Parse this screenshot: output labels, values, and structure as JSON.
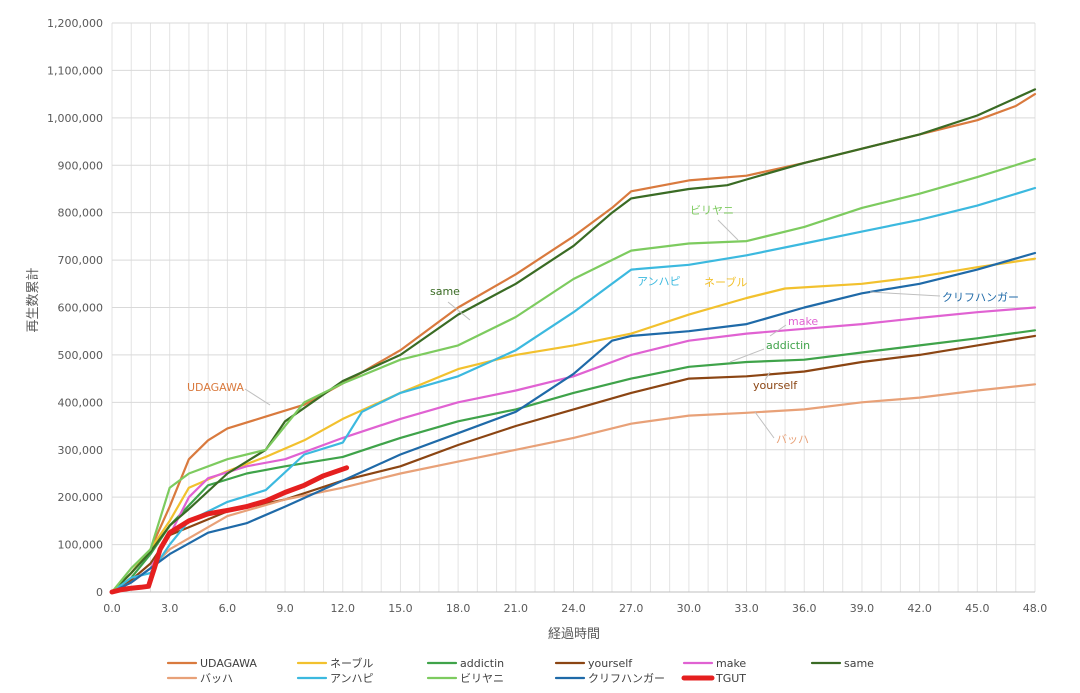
{
  "chart_data": {
    "type": "line",
    "xlabel": "経過時間",
    "ylabel": "再生数累計",
    "xlim": [
      0,
      48
    ],
    "ylim": [
      0,
      1200000
    ],
    "x_ticks": [
      "0.0",
      "3.0",
      "6.0",
      "9.0",
      "12.0",
      "15.0",
      "18.0",
      "21.0",
      "24.0",
      "27.0",
      "30.0",
      "33.0",
      "36.0",
      "39.0",
      "42.0",
      "45.0",
      "48.0"
    ],
    "y_ticks": [
      "0",
      "100,000",
      "200,000",
      "300,000",
      "400,000",
      "500,000",
      "600,000",
      "700,000",
      "800,000",
      "900,000",
      "1,000,000",
      "1,100,000",
      "1,200,000"
    ],
    "grid": true,
    "legend_position": "bottom",
    "series": [
      {
        "name": "UDAGAWA",
        "color": "#D97A3E",
        "label": "UDAGAWA",
        "x": [
          0,
          1,
          2,
          3,
          4,
          5,
          6,
          8,
          10,
          12,
          15,
          18,
          21,
          24,
          26,
          27,
          30,
          33,
          36,
          39,
          42,
          45,
          47,
          48
        ],
        "y": [
          0,
          40000,
          90000,
          180000,
          280000,
          320000,
          345000,
          370000,
          395000,
          440000,
          510000,
          600000,
          670000,
          750000,
          810000,
          845000,
          868000,
          878000,
          905000,
          935000,
          965000,
          995000,
          1025000,
          1050000
        ]
      },
      {
        "name": "ネーブル",
        "color": "#F2C12E",
        "label": "ネーブル",
        "x": [
          0,
          1,
          2,
          3,
          4,
          6,
          8,
          10,
          12,
          15,
          18,
          21,
          24,
          27,
          30,
          33,
          35,
          39,
          42,
          45,
          48
        ],
        "y": [
          0,
          40000,
          90000,
          150000,
          220000,
          255000,
          285000,
          320000,
          365000,
          420000,
          470000,
          500000,
          520000,
          545000,
          585000,
          620000,
          640000,
          650000,
          665000,
          685000,
          703000
        ]
      },
      {
        "name": "addictin",
        "color": "#3FA34A",
        "label": "addictin",
        "x": [
          0,
          1,
          2,
          3,
          5,
          7,
          9,
          12,
          15,
          18,
          21,
          24,
          27,
          30,
          33,
          36,
          39,
          42,
          45,
          48
        ],
        "y": [
          0,
          30000,
          80000,
          140000,
          225000,
          250000,
          265000,
          285000,
          325000,
          360000,
          385000,
          420000,
          450000,
          475000,
          485000,
          490000,
          505000,
          520000,
          535000,
          552000
        ]
      },
      {
        "name": "yourself",
        "color": "#8B4513",
        "label": "yourself",
        "x": [
          0,
          1,
          2,
          3,
          6,
          9,
          12,
          15,
          18,
          21,
          24,
          27,
          30,
          33,
          36,
          39,
          42,
          45,
          48
        ],
        "y": [
          0,
          25000,
          60000,
          120000,
          170000,
          195000,
          235000,
          265000,
          310000,
          350000,
          385000,
          420000,
          450000,
          455000,
          465000,
          485000,
          500000,
          520000,
          540000
        ]
      },
      {
        "name": "make",
        "color": "#E062D2",
        "label": "make",
        "x": [
          0,
          1,
          2,
          3,
          4,
          5,
          7,
          9,
          12,
          15,
          18,
          21,
          24,
          27,
          30,
          33,
          36,
          39,
          42,
          45,
          48
        ],
        "y": [
          0,
          20000,
          50000,
          120000,
          200000,
          240000,
          265000,
          280000,
          325000,
          365000,
          400000,
          425000,
          455000,
          500000,
          530000,
          545000,
          555000,
          565000,
          578000,
          590000,
          600000
        ]
      },
      {
        "name": "same",
        "color": "#3A6B24",
        "label": "same",
        "x": [
          0,
          1,
          2,
          3,
          4,
          6,
          8,
          9,
          12,
          15,
          18,
          21,
          24,
          26,
          27,
          30,
          32,
          33,
          36,
          39,
          42,
          45,
          48
        ],
        "y": [
          0,
          40000,
          85000,
          140000,
          175000,
          250000,
          300000,
          360000,
          445000,
          500000,
          585000,
          650000,
          730000,
          800000,
          830000,
          850000,
          858000,
          870000,
          905000,
          935000,
          965000,
          1005000,
          1060000
        ]
      },
      {
        "name": "バッハ",
        "color": "#E8A178",
        "label": "バッハ",
        "x": [
          0,
          1,
          2,
          3,
          6,
          9,
          12,
          15,
          18,
          21,
          24,
          27,
          30,
          33,
          36,
          39,
          42,
          45,
          48
        ],
        "y": [
          0,
          20000,
          50000,
          90000,
          160000,
          195000,
          220000,
          250000,
          275000,
          300000,
          325000,
          355000,
          372000,
          378000,
          385000,
          400000,
          410000,
          425000,
          438000
        ]
      },
      {
        "name": "アンハピ",
        "color": "#3CB9DF",
        "label": "アンハピ",
        "x": [
          0,
          1,
          2,
          3,
          4,
          6,
          8,
          10,
          12,
          13,
          15,
          18,
          21,
          24,
          26,
          27,
          30,
          33,
          36,
          39,
          42,
          45,
          48
        ],
        "y": [
          0,
          30000,
          40000,
          100000,
          150000,
          190000,
          215000,
          290000,
          315000,
          380000,
          420000,
          455000,
          510000,
          590000,
          650000,
          680000,
          690000,
          710000,
          735000,
          760000,
          785000,
          815000,
          852000
        ]
      },
      {
        "name": "ビリヤニ",
        "color": "#7DCB5F",
        "label": "ビリヤニ",
        "x": [
          0,
          1,
          2,
          3,
          4,
          6,
          8,
          10,
          12,
          15,
          18,
          21,
          24,
          27,
          30,
          33,
          36,
          39,
          42,
          45,
          48
        ],
        "y": [
          0,
          50000,
          90000,
          220000,
          250000,
          280000,
          300000,
          400000,
          440000,
          490000,
          520000,
          580000,
          660000,
          720000,
          735000,
          740000,
          770000,
          810000,
          840000,
          875000,
          913000
        ]
      },
      {
        "name": "クリフハンガー",
        "color": "#1F6AA8",
        "label": "クリフハンガー",
        "x": [
          0,
          1,
          2,
          3,
          5,
          7,
          9,
          12,
          15,
          18,
          21,
          24,
          26,
          27,
          30,
          33,
          36,
          39,
          42,
          45,
          48
        ],
        "y": [
          0,
          20000,
          50000,
          80000,
          125000,
          145000,
          180000,
          235000,
          290000,
          335000,
          380000,
          460000,
          530000,
          540000,
          550000,
          565000,
          600000,
          630000,
          650000,
          680000,
          715000
        ]
      },
      {
        "name": "TGUT",
        "color": "#E51F1F",
        "label": "",
        "x": [
          0,
          0.5,
          1,
          1.5,
          1.9,
          2.2,
          2.5,
          3,
          4,
          5,
          6,
          7,
          8,
          9,
          10,
          11,
          12.2
        ],
        "y": [
          0,
          5000,
          8000,
          10000,
          12000,
          50000,
          90000,
          125000,
          150000,
          165000,
          172000,
          180000,
          192000,
          210000,
          225000,
          245000,
          262000
        ]
      }
    ]
  }
}
